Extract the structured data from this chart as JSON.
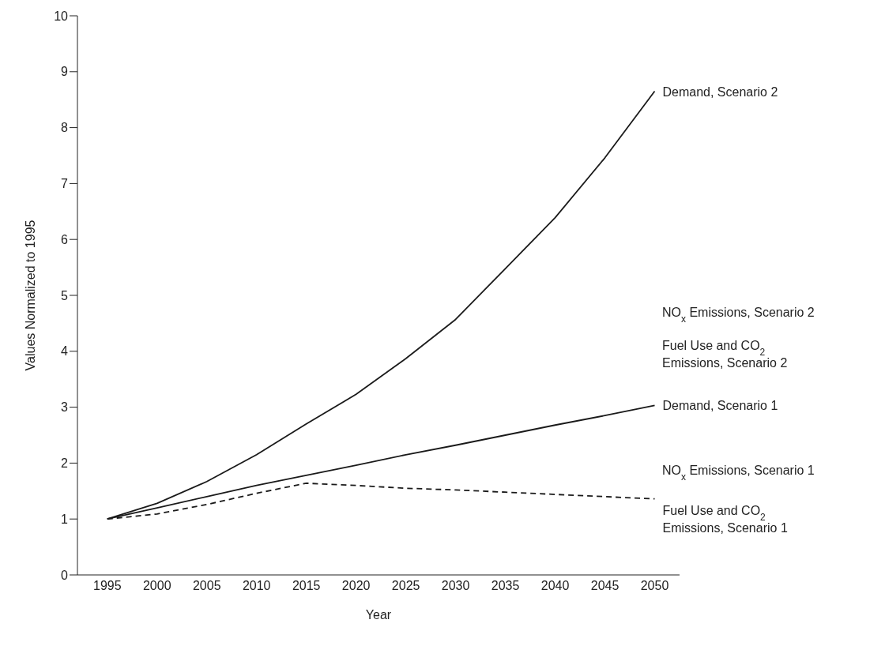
{
  "chart_data": {
    "type": "line",
    "xlabel": "Year",
    "ylabel": "Values Normalized to 1995",
    "x": [
      1995,
      2000,
      2005,
      2010,
      2015,
      2020,
      2025,
      2030,
      2035,
      2040,
      2045,
      2050
    ],
    "series": [
      {
        "name": "Demand, Scenario 2",
        "color": "#1a1a1a",
        "values": [
          1,
          1.28,
          1.67,
          2.15,
          2.7,
          3.23,
          3.87,
          4.57,
          5.48,
          6.39,
          7.46,
          8.65
        ]
      },
      {
        "name": "Demand, Scenario 1",
        "color": "#1a1a1a",
        "values": [
          1,
          1.2,
          1.4,
          1.6,
          1.78,
          1.96,
          2.15,
          2.32,
          2.5,
          2.68,
          2.85,
          3.03
        ]
      },
      {
        "name": "Fuel Use and CO$_{2}$ Emissions, Scenario 1",
        "color": "#1a1a1a",
        "line_style": "dashed",
        "values": [
          1,
          1.09,
          1.26,
          1.46,
          1.64,
          1.6,
          1.55,
          1.52,
          1.48,
          1.44,
          1.4,
          1.36
        ]
      }
    ],
    "annotations": [
      "NO$_{x}$ Emissions, Scenario 2",
      "Fuel Use and CO$_{2}$ Emissions, Scenario 2",
      "NO$_{x}$ Emissions, Scenario 1"
    ],
    "xlim": [
      1992,
      2052.5
    ],
    "xticks": [
      1995,
      2000,
      2005,
      2010,
      2015,
      2020,
      2025,
      2030,
      2035,
      2040,
      2045,
      2050
    ],
    "ylim": [
      0,
      10
    ],
    "yticks": [
      0,
      1,
      2,
      3,
      4,
      5,
      6,
      7,
      8,
      9,
      10
    ],
    "grid": false,
    "legend": false
  }
}
